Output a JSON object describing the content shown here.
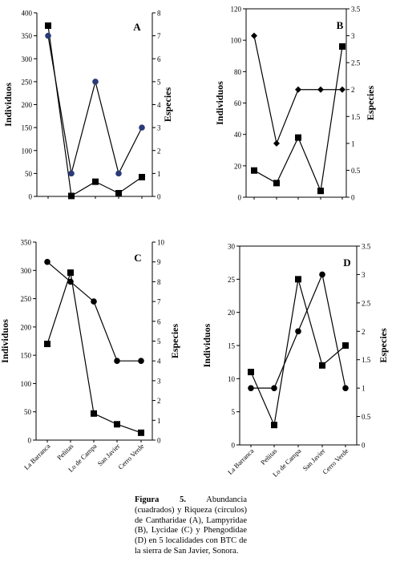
{
  "chart_data": [
    {
      "type": "line",
      "panel_letter": "A",
      "categories": [
        "La Barranca",
        "Peñitas",
        "Lo de Campa",
        "San Javier",
        "Cerro Verde"
      ],
      "ylabel": "Individuos",
      "ylabel_right": "Especies",
      "ylim": [
        0,
        400
      ],
      "ylim_right": [
        0,
        8
      ],
      "yticks": [
        "0",
        "50",
        "100",
        "150",
        "200",
        "250",
        "300",
        "350",
        "400"
      ],
      "yticks_right": [
        "0",
        "1",
        "2",
        "3",
        "4",
        "5",
        "6",
        "7",
        "8"
      ],
      "series": [
        {
          "marker": "square",
          "axis": "left",
          "values": [
            372,
            1,
            32,
            7,
            42
          ]
        },
        {
          "marker": "circle",
          "axis": "right",
          "values": [
            7,
            1,
            5,
            1,
            3
          ]
        }
      ]
    },
    {
      "type": "line",
      "panel_letter": "B",
      "categories": [
        "La Barranca",
        "Peñitas",
        "Lo de Campa",
        "San Javier",
        "Cerro Verde"
      ],
      "ylabel": "Individuos",
      "ylabel_right": "Especies",
      "ylim": [
        0,
        120
      ],
      "ylim_right": [
        0,
        3.5
      ],
      "yticks": [
        "0",
        "20",
        "40",
        "60",
        "80",
        "100",
        "120"
      ],
      "yticks_right": [
        "0",
        "0.5",
        "1",
        "1.5",
        "2",
        "2.5",
        "3",
        "3.5"
      ],
      "series": [
        {
          "marker": "square",
          "axis": "left",
          "values": [
            17,
            9,
            38,
            4,
            96
          ]
        },
        {
          "marker": "diamond",
          "axis": "right",
          "values": [
            3,
            1,
            2,
            2,
            2
          ]
        }
      ]
    },
    {
      "type": "line",
      "panel_letter": "C",
      "categories": [
        "La Barranca",
        "Peñitas",
        "Lo de Campa",
        "San Javier",
        "Cerro Verde"
      ],
      "ylabel": "Individuos",
      "ylabel_right": "Especies",
      "ylim": [
        0,
        350
      ],
      "ylim_right": [
        0,
        10
      ],
      "yticks": [
        "0",
        "50",
        "100",
        "150",
        "200",
        "250",
        "300",
        "350"
      ],
      "yticks_right": [
        "0",
        "1",
        "2",
        "3",
        "4",
        "5",
        "6",
        "7",
        "8",
        "9",
        "10"
      ],
      "series": [
        {
          "marker": "square",
          "axis": "left",
          "values": [
            170,
            296,
            47,
            28,
            13
          ]
        },
        {
          "marker": "circle",
          "axis": "right",
          "values": [
            9,
            8,
            7,
            4,
            4
          ]
        }
      ]
    },
    {
      "type": "line",
      "panel_letter": "D",
      "categories": [
        "La Barranca",
        "Peñitas",
        "Lo de Campa",
        "San Javier",
        "Cerro Verde"
      ],
      "ylabel": "Individuos",
      "ylabel_right": "Especies",
      "ylim": [
        0,
        30
      ],
      "ylim_right": [
        0,
        3.5
      ],
      "yticks": [
        "0",
        "5",
        "10",
        "15",
        "20",
        "25",
        "30"
      ],
      "yticks_right": [
        "0",
        "0.5",
        "1",
        "1.5",
        "2",
        "2.5",
        "3",
        "3.5"
      ],
      "series": [
        {
          "marker": "square",
          "axis": "left",
          "values": [
            11,
            3,
            25,
            12,
            15
          ]
        },
        {
          "marker": "circle",
          "axis": "right",
          "values": [
            1,
            1,
            2,
            3,
            1
          ]
        }
      ]
    }
  ],
  "caption": {
    "label": "Figura 5.",
    "text": "Abundancia (cuadrados) y Riqueza (círculos) de Cantharidae (A), Lampyridae (B), Lycidae (C) y Phengodidae (D) en 5 localidades con BTC de la sierra de San Javier, Sonora."
  },
  "colors": {
    "axis": "#000000",
    "line": "#000000",
    "marker_a_circle": "#2b3a78",
    "marker_default": "#000000"
  }
}
